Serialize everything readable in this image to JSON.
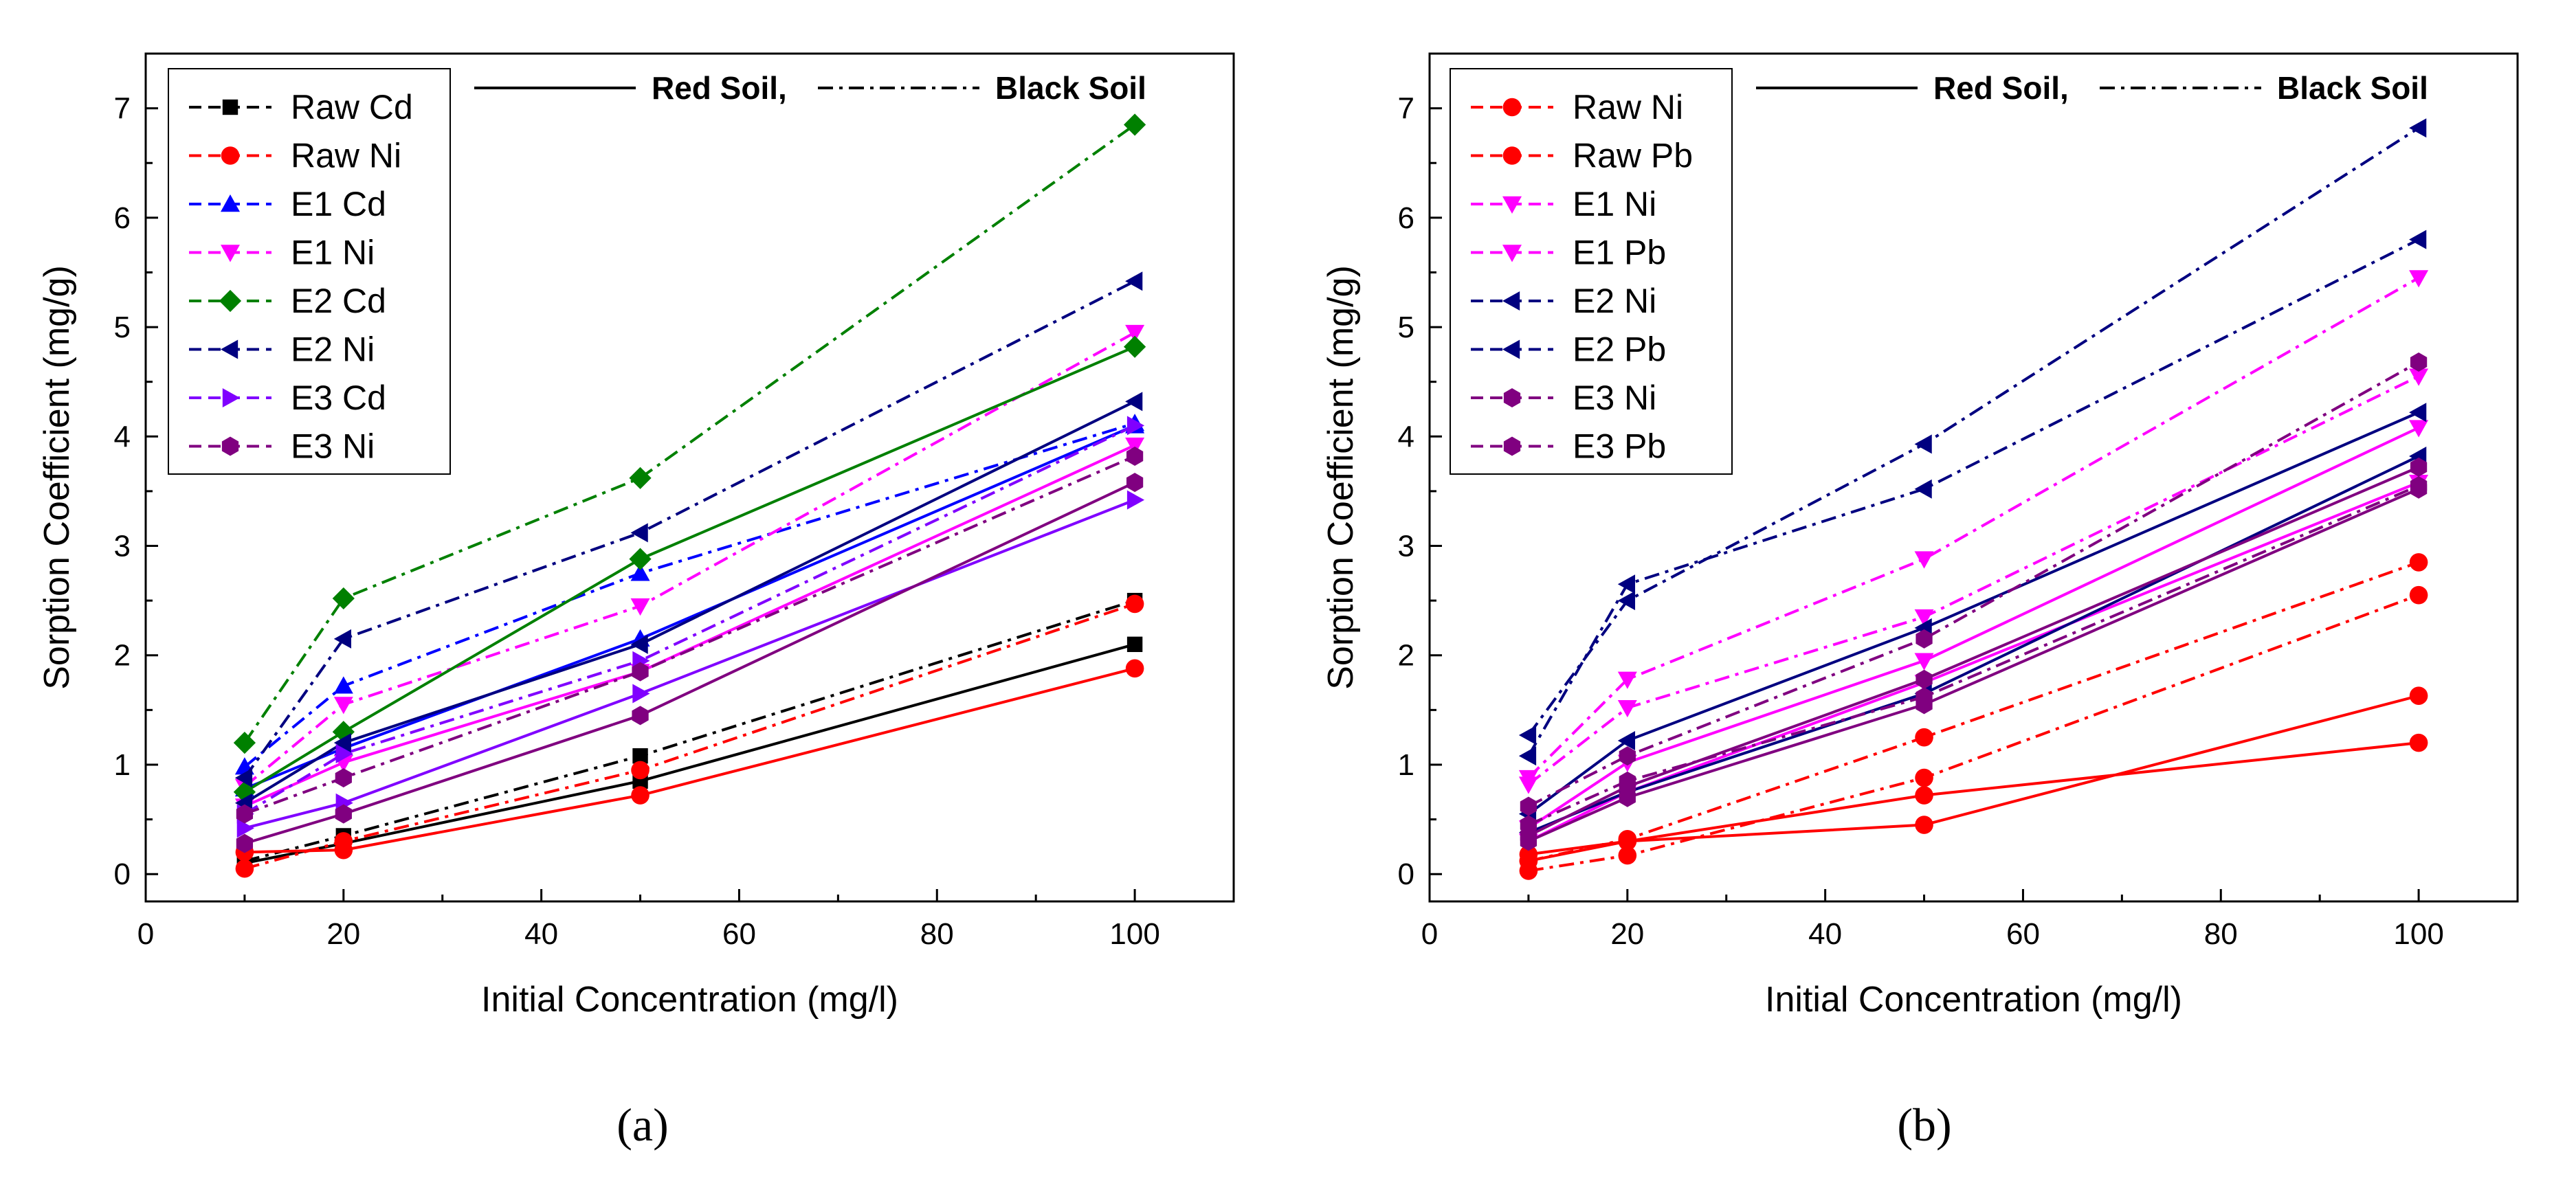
{
  "styles": {
    "Raw Cd": {
      "color": "#000000",
      "marker": "square"
    },
    "Raw Ni": {
      "color": "#ff0000",
      "marker": "circle"
    },
    "Raw Pb": {
      "color": "#ff0000",
      "marker": "circle"
    },
    "E1 Cd": {
      "color": "#0000ff",
      "marker": "triangle-up"
    },
    "E1 Ni": {
      "color": "#ff00ff",
      "marker": "triangle-down"
    },
    "E1 Pb": {
      "color": "#ff00ff",
      "marker": "triangle-down"
    },
    "E2 Cd": {
      "color": "#008000",
      "marker": "diamond"
    },
    "E2 Ni": {
      "color": "#000080",
      "marker": "triangle-left"
    },
    "E2 Pb": {
      "color": "#000080",
      "marker": "triangle-left"
    },
    "E3 Cd": {
      "color": "#8000ff",
      "marker": "triangle-right"
    },
    "E3 Ni": {
      "color": "#800080",
      "marker": "hexagon"
    },
    "E3 Pb": {
      "color": "#800080",
      "marker": "hexagon"
    }
  },
  "chart_data": [
    {
      "type": "line",
      "panel_label": "(a)",
      "xlabel": "Initial Concentration (mg/l)",
      "ylabel": "Sorption Coefficient (mg/g)",
      "xlim": [
        0,
        110
      ],
      "ylim": [
        -0.25,
        7.5
      ],
      "xticks": [
        0,
        20,
        40,
        60,
        80,
        100
      ],
      "yticks": [
        0,
        1,
        2,
        3,
        4,
        5,
        6,
        7
      ],
      "soil_legend": {
        "red": "Red Soil,",
        "black": "Black Soil"
      },
      "legend": [
        "Raw Cd",
        "Raw Ni",
        "E1 Cd",
        "E1 Ni",
        "E2 Cd",
        "E2 Ni",
        "E3 Cd",
        "E3 Ni"
      ],
      "x": [
        10,
        20,
        50,
        100
      ],
      "series": [
        {
          "name": "Raw Cd",
          "red": [
            0.1,
            0.28,
            0.85,
            2.1
          ],
          "black": [
            0.12,
            0.35,
            1.08,
            2.5
          ]
        },
        {
          "name": "Raw Ni",
          "red": [
            0.2,
            0.22,
            0.72,
            1.88
          ],
          "black": [
            0.05,
            0.3,
            0.95,
            2.47
          ]
        },
        {
          "name": "E1 Cd",
          "red": [
            0.78,
            1.15,
            2.15,
            4.1
          ],
          "black": [
            0.98,
            1.72,
            2.75,
            4.12
          ]
        },
        {
          "name": "E1 Ni",
          "red": [
            0.62,
            1.02,
            1.85,
            3.92
          ],
          "black": [
            0.8,
            1.55,
            2.45,
            4.95
          ]
        },
        {
          "name": "E2 Cd",
          "red": [
            0.75,
            1.3,
            2.88,
            4.82
          ],
          "black": [
            1.2,
            2.52,
            3.62,
            6.85
          ]
        },
        {
          "name": "E2 Ni",
          "red": [
            0.65,
            1.2,
            2.1,
            4.32
          ],
          "black": [
            0.88,
            2.15,
            3.12,
            5.42
          ]
        },
        {
          "name": "E3 Cd",
          "red": [
            0.42,
            0.65,
            1.65,
            3.42
          ],
          "black": [
            0.55,
            1.1,
            1.95,
            4.1
          ]
        },
        {
          "name": "E3 Ni",
          "red": [
            0.28,
            0.55,
            1.45,
            3.58
          ],
          "black": [
            0.55,
            0.88,
            1.85,
            3.82
          ]
        }
      ]
    },
    {
      "type": "line",
      "panel_label": "(b)",
      "xlabel": "Initial Concentration (mg/l)",
      "ylabel": "Sorption Coefficient (mg/g)",
      "xlim": [
        0,
        110
      ],
      "ylim": [
        -0.25,
        7.5
      ],
      "xticks": [
        0,
        20,
        40,
        60,
        80,
        100
      ],
      "yticks": [
        0,
        1,
        2,
        3,
        4,
        5,
        6,
        7
      ],
      "soil_legend": {
        "red": "Red Soil,",
        "black": "Black Soil"
      },
      "legend": [
        "Raw Ni",
        "Raw Pb",
        "E1 Ni",
        "E1 Pb",
        "E2 Ni",
        "E2 Pb",
        "E3 Ni",
        "E3 Pb"
      ],
      "x": [
        10,
        20,
        50,
        100
      ],
      "series": [
        {
          "name": "Raw Ni",
          "red": [
            0.18,
            0.3,
            0.45,
            1.63
          ],
          "black": [
            0.12,
            0.32,
            1.25,
            2.85
          ]
        },
        {
          "name": "Raw Pb",
          "red": [
            0.12,
            0.3,
            0.72,
            1.2
          ],
          "black": [
            0.03,
            0.17,
            0.88,
            2.55
          ]
        },
        {
          "name": "E1 Ni",
          "red": [
            0.3,
            0.75,
            1.75,
            3.58
          ],
          "black": [
            0.88,
            1.78,
            2.88,
            5.45
          ]
        },
        {
          "name": "E1 Pb",
          "red": [
            0.42,
            1.02,
            1.95,
            4.08
          ],
          "black": [
            0.82,
            1.52,
            2.35,
            4.55
          ]
        },
        {
          "name": "E2 Ni",
          "red": [
            0.38,
            0.75,
            1.65,
            3.82
          ],
          "black": [
            1.27,
            2.5,
            3.93,
            6.82
          ]
        },
        {
          "name": "E2 Pb",
          "red": [
            0.55,
            1.22,
            2.25,
            4.22
          ],
          "black": [
            1.08,
            2.65,
            3.52,
            5.8
          ]
        },
        {
          "name": "E3 Ni",
          "red": [
            0.35,
            0.8,
            1.78,
            3.72
          ],
          "black": [
            0.62,
            1.08,
            2.15,
            4.68
          ]
        },
        {
          "name": "E3 Pb",
          "red": [
            0.3,
            0.7,
            1.55,
            3.52
          ],
          "black": [
            0.45,
            0.85,
            1.62,
            3.55
          ]
        }
      ]
    }
  ]
}
